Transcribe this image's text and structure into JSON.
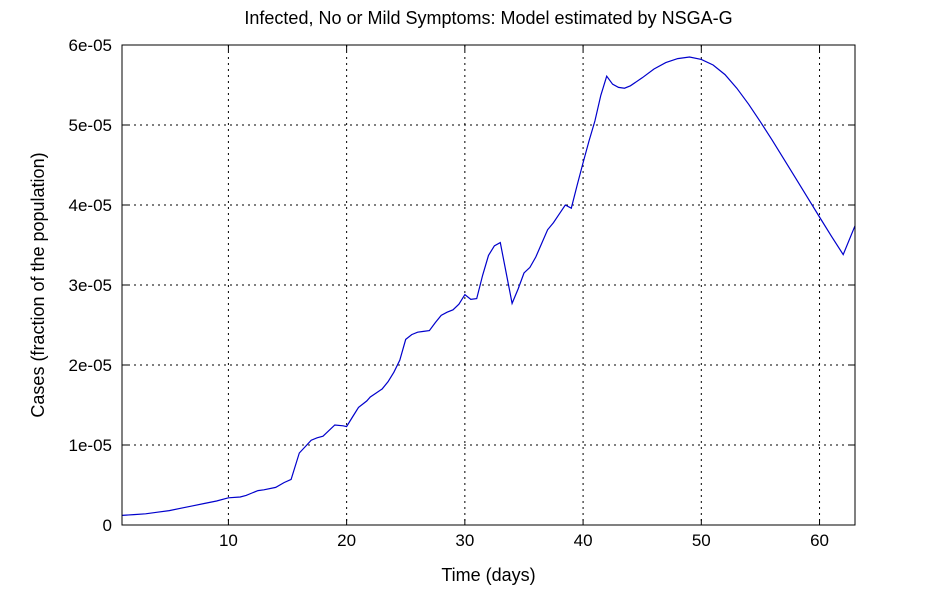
{
  "chart_data": {
    "type": "line",
    "title": "Infected, No or Mild Symptoms: Model estimated by NSGA-G",
    "xlabel": "Time (days)",
    "ylabel": "Cases (fraction of the population)",
    "xlim": [
      1,
      63
    ],
    "ylim": [
      0,
      6e-05
    ],
    "xticks": [
      10,
      20,
      30,
      40,
      50,
      60
    ],
    "xtick_labels": [
      "10",
      "20",
      "30",
      "40",
      "50",
      "60"
    ],
    "yticks": [
      0,
      1e-05,
      2e-05,
      3e-05,
      4e-05,
      5e-05,
      6e-05
    ],
    "ytick_labels": [
      "0",
      "1e-05",
      "2e-05",
      "3e-05",
      "4e-05",
      "5e-05",
      "6e-05"
    ],
    "grid": true,
    "line_color": "#0000cc",
    "series": [
      {
        "x": [
          1,
          2,
          3,
          4,
          5,
          6,
          7,
          8,
          9,
          10,
          11,
          11.5,
          12,
          12.5,
          13,
          14,
          14.7,
          15.3,
          16,
          16.5,
          17,
          17.5,
          18,
          19,
          19.7,
          20,
          20.5,
          21,
          21.7,
          22,
          22.5,
          23,
          23.5,
          24,
          24.5,
          25,
          25.5,
          26,
          26.5,
          27,
          27.5,
          28,
          28.5,
          29,
          29.5,
          30,
          30.5,
          31,
          31.5,
          32,
          32.5,
          33,
          34,
          34.5,
          35,
          35.5,
          36,
          36.5,
          37,
          37.5,
          38,
          38.5,
          39,
          39.5,
          40,
          40.5,
          41,
          41.5,
          42,
          42.5,
          43,
          43.5,
          44,
          45,
          46,
          47,
          48,
          49,
          50,
          51,
          52,
          53,
          54,
          55,
          56,
          57,
          58,
          59,
          60,
          61,
          62,
          63
        ],
        "y": [
          1.2e-06,
          1.3e-06,
          1.4e-06,
          1.6e-06,
          1.8e-06,
          2.1e-06,
          2.4e-06,
          2.7e-06,
          3e-06,
          3.4e-06,
          3.5e-06,
          3.7e-06,
          4e-06,
          4.3e-06,
          4.4e-06,
          4.7e-06,
          5.3e-06,
          5.7e-06,
          9e-06,
          9.8e-06,
          1.06e-05,
          1.09e-05,
          1.11e-05,
          1.25e-05,
          1.24e-05,
          1.23e-05,
          1.35e-05,
          1.47e-05,
          1.55e-05,
          1.6e-05,
          1.65e-05,
          1.7e-05,
          1.79e-05,
          1.91e-05,
          2.06e-05,
          2.32e-05,
          2.38e-05,
          2.41e-05,
          2.42e-05,
          2.43e-05,
          2.53e-05,
          2.62e-05,
          2.66e-05,
          2.69e-05,
          2.76e-05,
          2.88e-05,
          2.82e-05,
          2.83e-05,
          3.12e-05,
          3.37e-05,
          3.49e-05,
          3.53e-05,
          2.77e-05,
          2.95e-05,
          3.15e-05,
          3.22e-05,
          3.35e-05,
          3.52e-05,
          3.69e-05,
          3.78e-05,
          3.89e-05,
          4e-05,
          3.96e-05,
          4.25e-05,
          4.53e-05,
          4.8e-05,
          5.05e-05,
          5.37e-05,
          5.61e-05,
          5.51e-05,
          5.47e-05,
          5.46e-05,
          5.49e-05,
          5.59e-05,
          5.7e-05,
          5.78e-05,
          5.83e-05,
          5.85e-05,
          5.82e-05,
          5.75e-05,
          5.63e-05,
          5.46e-05,
          5.26e-05,
          5.04e-05,
          4.81e-05,
          4.57e-05,
          4.33e-05,
          4.09e-05,
          3.85e-05,
          3.61e-05,
          3.38e-05,
          3.74e-05
        ]
      }
    ]
  }
}
